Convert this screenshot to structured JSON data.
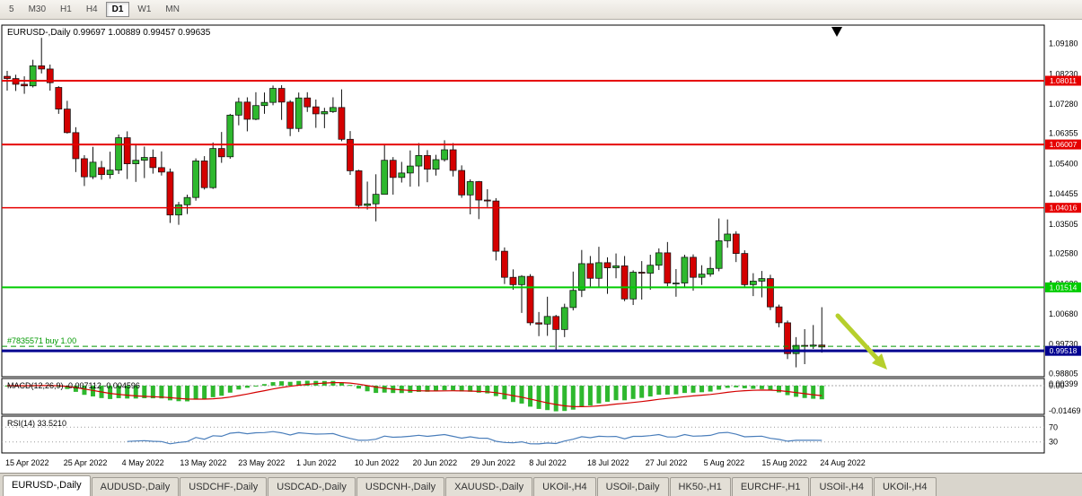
{
  "toolbar": {
    "timeframes": [
      "5",
      "M30",
      "H1",
      "H4",
      "D1",
      "W1",
      "MN"
    ],
    "active": "D1"
  },
  "chart": {
    "title": "EURUSD-,Daily",
    "ohlc_text": "0.99697 1.00889 0.99457 0.99635"
  },
  "chart_data": {
    "type": "candlestick",
    "symbol": "EURUSD",
    "timeframe": "Daily",
    "ohlc_display": {
      "open": "0.99697",
      "high": "1.00889",
      "low": "0.99457",
      "close": "0.99635"
    },
    "ylim": [
      0.98705,
      1.0976
    ],
    "y_axis_labels": [
      "1.09180",
      "1.08230",
      "1.07280",
      "1.06355",
      "1.05400",
      "1.04455",
      "1.03505",
      "1.02580",
      "1.01630",
      "1.00680",
      "0.99730",
      "0.98805"
    ],
    "x_axis_labels": [
      "15 Apr 2022",
      "25 Apr 2022",
      "4 May 2022",
      "13 May 2022",
      "23 May 2022",
      "1 Jun 2022",
      "10 Jun 2022",
      "20 Jun 2022",
      "29 Jun 2022",
      "8 Jul 2022",
      "18 Jul 2022",
      "27 Jul 2022",
      "5 Aug 2022",
      "15 Aug 2022",
      "24 Aug 2022"
    ],
    "candle_up_color": "#2eb82e",
    "candle_down_color": "#d40000",
    "hlines": [
      {
        "price": 1.08011,
        "label": "1.08011",
        "color": "#e60000",
        "width": 2,
        "name": "resistance-line-1"
      },
      {
        "price": 1.06007,
        "label": "1.06007",
        "color": "#e60000",
        "width": 2,
        "name": "resistance-line-2"
      },
      {
        "price": 1.04016,
        "label": "1.04016",
        "color": "#e60000",
        "width": 1.5,
        "name": "resistance-line-3"
      },
      {
        "price": 1.01514,
        "label": "1.01514",
        "color": "#00cc00",
        "width": 2,
        "name": "support-line-green"
      },
      {
        "price": 0.99518,
        "label": "0.99518",
        "color": "#000090",
        "width": 3,
        "name": "support-line-blue"
      }
    ],
    "position_line": {
      "text": "#7835571 buy 1.00",
      "price": 0.9966,
      "color": "#009900"
    },
    "annotations": {
      "trend_arrow": {
        "color": "#b6cf2c",
        "direction": "down-right"
      },
      "scroll_marker": {
        "color": "#000000"
      }
    },
    "indicators": {
      "macd": {
        "label": "MACD(12,26,9)",
        "values_text": "-0.007112 -0.004596",
        "axis_labels": [
          "0.00399",
          "0.00",
          "-0.01469"
        ],
        "histogram_color": "#2eb82e",
        "signal_color": "#d40000"
      },
      "rsi": {
        "label": "RSI(14)",
        "value_text": "33.5210",
        "levels": [
          "70",
          "30"
        ],
        "line_color": "#4a7ebb"
      }
    },
    "candles": [
      [
        1.0815,
        1.0832,
        1.077,
        1.0808
      ],
      [
        1.0808,
        1.082,
        1.0769,
        1.079
      ],
      [
        1.079,
        1.0815,
        1.076,
        1.0785
      ],
      [
        1.0785,
        1.0867,
        1.078,
        1.0848
      ],
      [
        1.0848,
        1.0936,
        1.0824,
        1.0838
      ],
      [
        1.0838,
        1.0852,
        1.077,
        1.0795
      ],
      [
        1.078,
        1.0784,
        1.0697,
        1.0712
      ],
      [
        1.0712,
        1.0738,
        1.0635,
        1.0638
      ],
      [
        1.0638,
        1.0655,
        1.0514,
        1.0556
      ],
      [
        1.0556,
        1.0567,
        1.047,
        1.0499
      ],
      [
        1.0499,
        1.0593,
        1.0492,
        1.0545
      ],
      [
        1.0528,
        1.0549,
        1.049,
        1.0506
      ],
      [
        1.0506,
        1.0578,
        1.0493,
        1.052
      ],
      [
        1.052,
        1.0632,
        1.0508,
        1.0622
      ],
      [
        1.0622,
        1.0642,
        1.0492,
        1.054
      ],
      [
        1.054,
        1.0599,
        1.0483,
        1.0551
      ],
      [
        1.0551,
        1.0594,
        1.0495,
        1.056
      ],
      [
        1.056,
        1.0585,
        1.0509,
        1.0528
      ],
      [
        1.0528,
        1.0579,
        1.0503,
        1.0514
      ],
      [
        1.0514,
        1.0525,
        1.0354,
        1.0379
      ],
      [
        1.0379,
        1.042,
        1.0348,
        1.0411
      ],
      [
        1.0411,
        1.0443,
        1.0382,
        1.0434
      ],
      [
        1.0434,
        1.0557,
        1.0424,
        1.0549
      ],
      [
        1.0549,
        1.0564,
        1.0459,
        1.0465
      ],
      [
        1.0465,
        1.0607,
        1.0461,
        1.0588
      ],
      [
        1.0588,
        1.064,
        1.0543,
        1.0562
      ],
      [
        1.0562,
        1.0697,
        1.0556,
        1.0693
      ],
      [
        1.0693,
        1.0748,
        1.0661,
        1.0734
      ],
      [
        1.0734,
        1.0749,
        1.0642,
        1.068
      ],
      [
        1.068,
        1.0765,
        1.0677,
        1.0723
      ],
      [
        1.0723,
        1.0764,
        1.0697,
        1.0733
      ],
      [
        1.0733,
        1.0786,
        1.0724,
        1.0777
      ],
      [
        1.0777,
        1.0787,
        1.0678,
        1.0734
      ],
      [
        1.0734,
        1.074,
        1.0627,
        1.0651
      ],
      [
        1.0651,
        1.0764,
        1.064,
        1.0747
      ],
      [
        1.0747,
        1.0765,
        1.0703,
        1.0719
      ],
      [
        1.0719,
        1.0742,
        1.0653,
        1.0697
      ],
      [
        1.0697,
        1.0716,
        1.0652,
        1.0704
      ],
      [
        1.0704,
        1.0749,
        1.07,
        1.0717
      ],
      [
        1.0717,
        1.0774,
        1.0611,
        1.0617
      ],
      [
        1.0617,
        1.0643,
        1.0505,
        1.0518
      ],
      [
        1.0518,
        1.0521,
        1.0399,
        1.0409
      ],
      [
        1.0409,
        1.0484,
        1.0396,
        1.0414
      ],
      [
        1.0414,
        1.0507,
        1.0359,
        1.0444
      ],
      [
        1.0444,
        1.0601,
        1.0444,
        1.0551
      ],
      [
        1.0551,
        1.0561,
        1.0443,
        1.0497
      ],
      [
        1.0497,
        1.0546,
        1.0481,
        1.0511
      ],
      [
        1.0511,
        1.0582,
        1.0468,
        1.0533
      ],
      [
        1.0533,
        1.0605,
        1.0469,
        1.0566
      ],
      [
        1.0566,
        1.0583,
        1.0482,
        1.0523
      ],
      [
        1.0523,
        1.0568,
        1.0503,
        1.0553
      ],
      [
        1.0553,
        1.0614,
        1.0547,
        1.0584
      ],
      [
        1.0584,
        1.0605,
        1.05,
        1.0519
      ],
      [
        1.0519,
        1.0535,
        1.0433,
        1.0442
      ],
      [
        1.0442,
        1.0491,
        1.0381,
        1.0484
      ],
      [
        1.0484,
        1.0486,
        1.0366,
        1.0426
      ],
      [
        1.0426,
        1.046,
        1.0404,
        1.0423
      ],
      [
        1.0423,
        1.0432,
        1.0236,
        1.0265
      ],
      [
        1.0265,
        1.0277,
        1.0162,
        1.0183
      ],
      [
        1.0183,
        1.0208,
        1.0144,
        1.016
      ],
      [
        1.016,
        1.019,
        1.0071,
        1.0186
      ],
      [
        1.0186,
        1.0193,
        1.0032,
        1.004
      ],
      [
        1.004,
        1.0074,
        0.9998,
        1.0036
      ],
      [
        1.0036,
        1.0122,
        0.9999,
        1.006
      ],
      [
        1.006,
        1.0065,
        0.9952,
        1.0019
      ],
      [
        1.0019,
        1.01,
        0.9995,
        1.0088
      ],
      [
        1.0088,
        1.0201,
        1.0079,
        1.0142
      ],
      [
        1.0142,
        1.0269,
        1.0121,
        1.0226
      ],
      [
        1.0226,
        1.025,
        1.0154,
        1.018
      ],
      [
        1.018,
        1.0279,
        1.0153,
        1.0229
      ],
      [
        1.0229,
        1.0246,
        1.0131,
        1.0213
      ],
      [
        1.0213,
        1.0258,
        1.018,
        1.0219
      ],
      [
        1.0219,
        1.025,
        1.0108,
        1.0115
      ],
      [
        1.0115,
        1.0205,
        1.0096,
        1.0199
      ],
      [
        1.0199,
        1.0234,
        1.0113,
        1.0196
      ],
      [
        1.0196,
        1.0254,
        1.0144,
        1.0221
      ],
      [
        1.0221,
        1.0274,
        1.0206,
        1.026
      ],
      [
        1.026,
        1.0294,
        1.0155,
        1.0165
      ],
      [
        1.0165,
        1.0209,
        1.0122,
        1.0165
      ],
      [
        1.0165,
        1.0254,
        1.0151,
        1.0246
      ],
      [
        1.0246,
        1.0255,
        1.0141,
        1.0183
      ],
      [
        1.0183,
        1.0221,
        1.0159,
        1.0193
      ],
      [
        1.0193,
        1.0247,
        1.0185,
        1.0211
      ],
      [
        1.0211,
        1.0368,
        1.0202,
        1.0298
      ],
      [
        1.0298,
        1.0365,
        1.0276,
        1.0319
      ],
      [
        1.0319,
        1.0328,
        1.0231,
        1.0258
      ],
      [
        1.0258,
        1.0268,
        1.0153,
        1.016
      ],
      [
        1.016,
        1.0196,
        1.0124,
        1.0171
      ],
      [
        1.0171,
        1.0203,
        1.012,
        1.0179
      ],
      [
        1.0179,
        1.0191,
        1.008,
        1.009
      ],
      [
        1.009,
        1.0097,
        1.0026,
        1.004
      ],
      [
        1.004,
        1.0047,
        0.9926,
        0.9943
      ],
      [
        0.9943,
        0.9995,
        0.99,
        0.9969
      ],
      [
        0.9969,
        1.002,
        0.991,
        0.9967
      ],
      [
        0.9967,
        1.0033,
        0.9958,
        0.997
      ],
      [
        0.997,
        1.0089,
        0.9946,
        0.9964
      ]
    ]
  },
  "tabs": {
    "items": [
      "EURUSD-,Daily",
      "AUDUSD-,Daily",
      "USDCHF-,Daily",
      "USDCAD-,Daily",
      "USDCNH-,Daily",
      "XAUUSD-,Daily",
      "UKOil-,H4",
      "USOil-,Daily",
      "HK50-,H1",
      "EURCHF-,H1",
      "USOil-,H4",
      "UKOil-,H4"
    ],
    "active": "EURUSD-,Daily"
  }
}
